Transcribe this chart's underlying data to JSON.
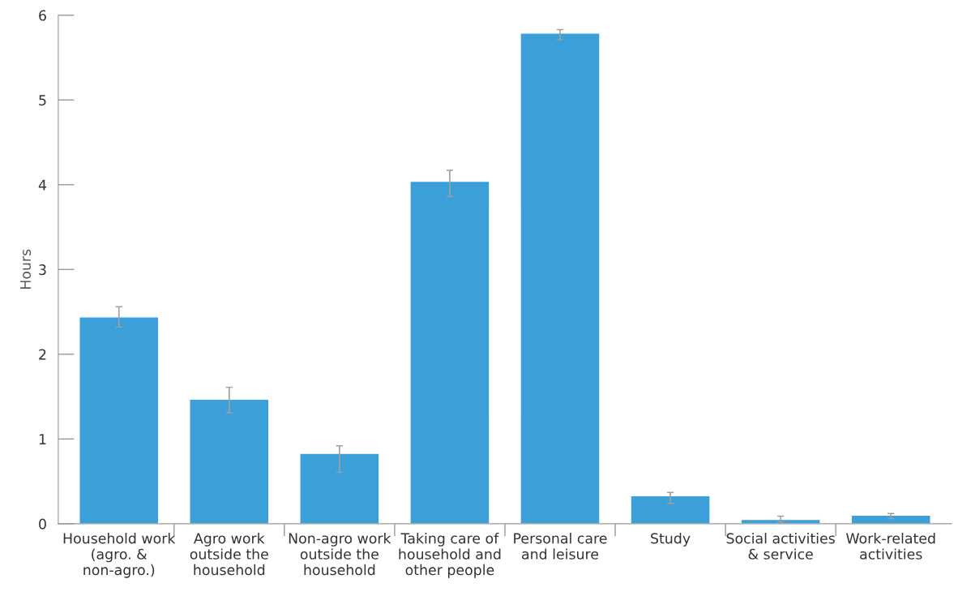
{
  "chart_data": {
    "type": "bar",
    "ylabel": "Hours",
    "categories": [
      "Household work\n(agro. &\nnon-agro.)",
      "Agro work\noutside the\nhousehold",
      "Non-agro work\noutside the\nhousehold",
      "Taking care of\nhousehold and\nother people",
      "Personal care\nand leisure",
      "Study",
      "Social activities\n& service",
      "Work-related\nactivities"
    ],
    "values": [
      2.44,
      1.47,
      0.83,
      4.04,
      5.79,
      0.33,
      0.05,
      0.1
    ],
    "errors": [
      [
        2.32,
        2.56
      ],
      [
        1.31,
        1.61
      ],
      [
        0.61,
        0.92
      ],
      [
        3.86,
        4.17
      ],
      [
        5.71,
        5.83
      ],
      [
        0.24,
        0.37
      ],
      [
        0.02,
        0.09
      ],
      [
        0.06,
        0.12
      ]
    ],
    "color": "#3b9fd9",
    "ylim": [
      0,
      6
    ],
    "yticks": [
      0,
      1,
      2,
      3,
      4,
      5,
      6
    ],
    "grid": false,
    "legend": false
  }
}
